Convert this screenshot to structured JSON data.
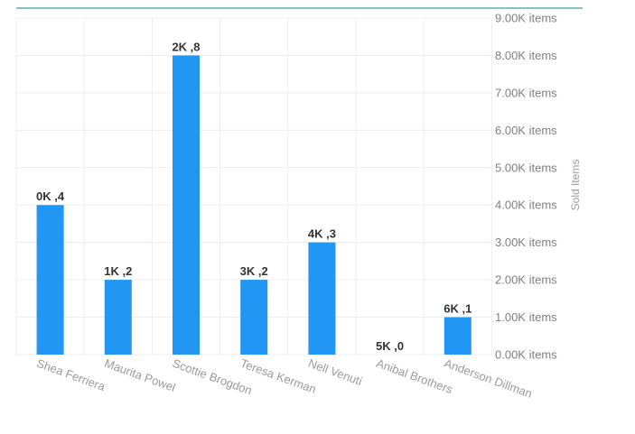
{
  "chart_data": {
    "type": "bar",
    "categories": [
      "Shea Ferriera",
      "Maurita Powel",
      "Scottie Brogdon",
      "Teresa Kerman",
      "Nell Venuti",
      "Anibal Brothers",
      "Anderson Dillman"
    ],
    "values": [
      4000,
      2000,
      8000,
      2000,
      3000,
      0,
      1000
    ],
    "data_labels": [
      "0K ,4",
      "1K ,2",
      "2K ,8",
      "3K ,2",
      "4K ,3",
      "5K ,0",
      "6K ,1"
    ],
    "ylabel": "Sold Items",
    "ylim": [
      0,
      9000
    ],
    "y_ticks": [
      {
        "value": 0,
        "label": "0.00K items"
      },
      {
        "value": 1000,
        "label": "1.00K items"
      },
      {
        "value": 2000,
        "label": "2.00K items"
      },
      {
        "value": 3000,
        "label": "3.00K items"
      },
      {
        "value": 4000,
        "label": "4.00K items"
      },
      {
        "value": 5000,
        "label": "5.00K items"
      },
      {
        "value": 6000,
        "label": "6.00K items"
      },
      {
        "value": 7000,
        "label": "7.00K items"
      },
      {
        "value": 8000,
        "label": "8.00K items"
      },
      {
        "value": 9000,
        "label": "9.00K items"
      }
    ],
    "y_axis_position": "right",
    "grid": true,
    "colors": {
      "bar": "#2196f3",
      "top_border": "#1f7a7a",
      "grid": "#ececec"
    }
  }
}
